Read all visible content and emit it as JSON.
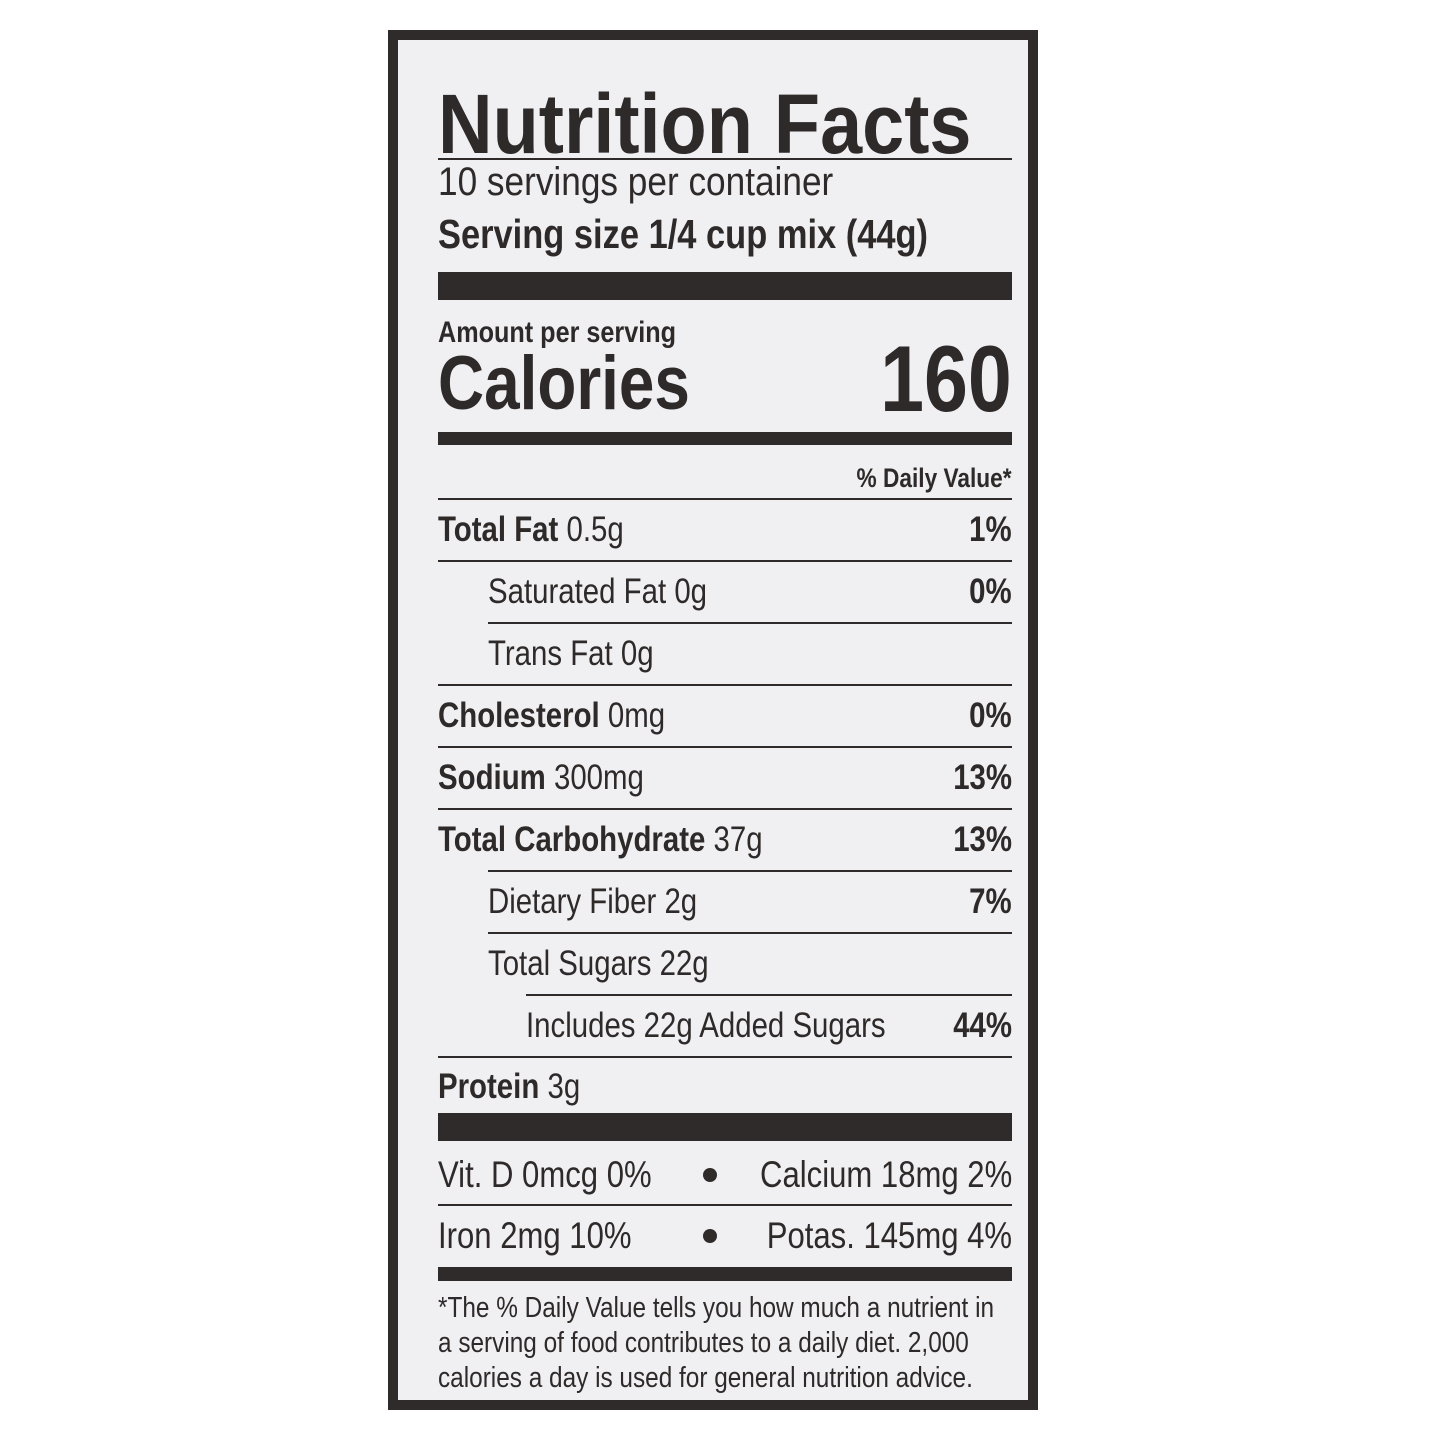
{
  "label": {
    "title": "Nutrition Facts",
    "servings_per_container": "10 servings per container",
    "serving_size_label": "Serving size",
    "serving_size_value": "1/4 cup mix (44g)",
    "amount_per_serving": "Amount per serving",
    "calories_label": "Calories",
    "calories_value": "160",
    "daily_value_header": "% Daily Value*",
    "nutrients": [
      {
        "name": "Total Fat",
        "amount": "0.5g",
        "dv": "1%"
      },
      {
        "name": "Saturated Fat",
        "amount": "0g",
        "dv": "0%"
      },
      {
        "name": "Trans Fat",
        "amount": "0g",
        "dv": ""
      },
      {
        "name": "Cholesterol",
        "amount": "0mg",
        "dv": "0%"
      },
      {
        "name": "Sodium",
        "amount": "300mg",
        "dv": "13%"
      },
      {
        "name": "Total Carbohydrate",
        "amount": "37g",
        "dv": "13%"
      },
      {
        "name": "Dietary Fiber",
        "amount": "2g",
        "dv": "7%"
      },
      {
        "name": "Total Sugars",
        "amount": "22g",
        "dv": ""
      },
      {
        "name": "Includes 22g Added Sugars",
        "amount": "",
        "dv": "44%"
      },
      {
        "name": "Protein",
        "amount": "3g",
        "dv": ""
      }
    ],
    "vitamins": [
      {
        "text": "Vit. D 0mcg 0%"
      },
      {
        "text": "Calcium 18mg 2%"
      },
      {
        "text": "Iron 2mg 10%"
      },
      {
        "text": "Potas. 145mg 4%"
      }
    ],
    "footnote": [
      "*The % Daily Value tells you how much a nutrient in",
      "a serving of food contributes to a daily diet. 2,000",
      "calories a day is used for general nutrition advice."
    ],
    "ink_color": "#2f2b2b",
    "paper_color": "#f0eff1"
  }
}
